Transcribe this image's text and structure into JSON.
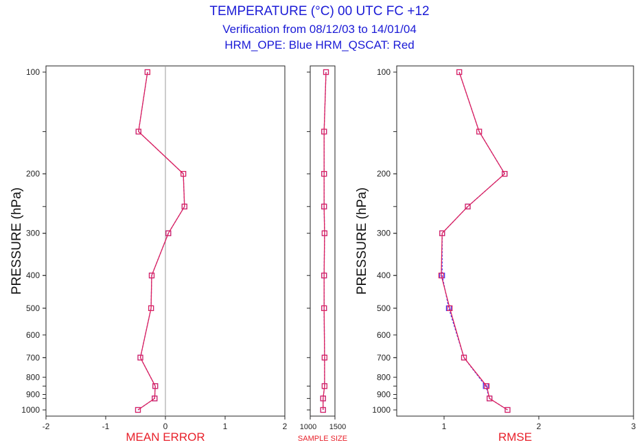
{
  "titles": {
    "line1": "TEMPERATURE (°C) 00 UTC  FC +12",
    "line2": "Verification from 08/12/03 to 14/01/04",
    "line3": "HRM_OPE: Blue      HRM_QSCAT: Red"
  },
  "colors": {
    "title": "#1a1ad6",
    "axis_label": "#e8202a",
    "series_blue": "#3a3aff",
    "series_red": "#e0205a",
    "zero_line": "#999999"
  },
  "chart_data": [
    {
      "type": "line",
      "xlabel": "MEAN ERROR",
      "ylabel": "PRESSURE (hPa)",
      "xlim": [
        -2,
        2
      ],
      "ylim": [
        1000,
        100
      ],
      "ylog": true,
      "xticks": [
        "-2",
        "-1",
        "0",
        "1",
        "2"
      ],
      "yticks": [
        "100",
        "200",
        "300",
        "400",
        "500",
        "600",
        "700",
        "800",
        "900",
        "1000"
      ],
      "y": [
        100,
        150,
        200,
        250,
        300,
        400,
        500,
        700,
        850,
        925,
        1000
      ],
      "series": [
        {
          "name": "HRM_OPE",
          "color": "blue",
          "values": [
            -0.3,
            -0.45,
            0.3,
            0.32,
            0.05,
            -0.23,
            -0.24,
            -0.42,
            -0.17,
            -0.18,
            -0.46
          ]
        },
        {
          "name": "HRM_QSCAT",
          "color": "red",
          "values": [
            -0.3,
            -0.45,
            0.3,
            0.32,
            0.05,
            -0.23,
            -0.24,
            -0.42,
            -0.17,
            -0.18,
            -0.46
          ]
        }
      ]
    },
    {
      "type": "line",
      "xlabel": "SAMPLE SIZE",
      "xlim": [
        1000,
        1500
      ],
      "ylim": [
        1000,
        100
      ],
      "ylog": true,
      "xticks": [
        "1000",
        "1500"
      ],
      "y": [
        100,
        150,
        200,
        250,
        300,
        400,
        500,
        700,
        850,
        925,
        1000
      ],
      "series": [
        {
          "name": "HRM_OPE",
          "color": "blue",
          "values": [
            1320,
            1280,
            1280,
            1280,
            1290,
            1280,
            1280,
            1290,
            1290,
            1260,
            1260
          ]
        },
        {
          "name": "HRM_QSCAT",
          "color": "red",
          "values": [
            1320,
            1280,
            1280,
            1280,
            1290,
            1280,
            1280,
            1290,
            1290,
            1260,
            1260
          ]
        }
      ]
    },
    {
      "type": "line",
      "xlabel": "RMSE",
      "ylabel": "PRESSURE (hPa)",
      "xlim": [
        0.5,
        3
      ],
      "ylim": [
        1000,
        100
      ],
      "ylog": true,
      "xticks": [
        "1",
        "2",
        "3"
      ],
      "yticks": [
        "100",
        "200",
        "300",
        "400",
        "500",
        "600",
        "700",
        "800",
        "900",
        "1000"
      ],
      "y": [
        100,
        150,
        200,
        250,
        300,
        400,
        500,
        700,
        850,
        925,
        1000
      ],
      "series": [
        {
          "name": "HRM_OPE",
          "color": "blue",
          "values": [
            1.16,
            1.37,
            1.64,
            1.25,
            0.98,
            0.98,
            1.05,
            1.21,
            1.44,
            1.48,
            1.67
          ]
        },
        {
          "name": "HRM_QSCAT",
          "color": "red",
          "values": [
            1.16,
            1.37,
            1.64,
            1.25,
            0.98,
            0.97,
            1.06,
            1.21,
            1.45,
            1.48,
            1.67
          ]
        }
      ]
    }
  ]
}
